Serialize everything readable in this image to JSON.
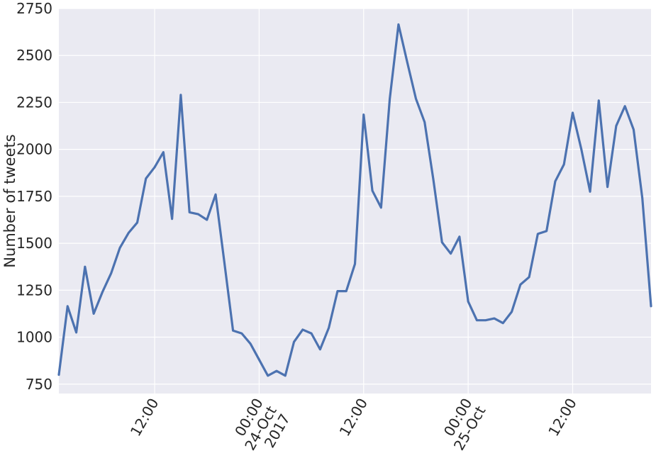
{
  "chart_data": {
    "type": "line",
    "title": "",
    "xlabel": "",
    "ylabel": "Number of tweets",
    "ylim": [
      700,
      2750
    ],
    "xlim": [
      "2017-10-23 01:00",
      "2017-10-25 21:00"
    ],
    "grid": true,
    "y_ticks": [
      750,
      1000,
      1250,
      1500,
      1750,
      2000,
      2250,
      2500,
      2750
    ],
    "x_ticks": [
      {
        "x": "2017-10-23 12:00",
        "label": [
          "12:00"
        ]
      },
      {
        "x": "2017-10-24 00:00",
        "label": [
          "00:00",
          "24-Oct",
          "2017"
        ]
      },
      {
        "x": "2017-10-24 12:00",
        "label": [
          "12:00"
        ]
      },
      {
        "x": "2017-10-25 00:00",
        "label": [
          "00:00",
          "25-Oct"
        ]
      },
      {
        "x": "2017-10-25 12:00",
        "label": [
          "12:00"
        ]
      }
    ],
    "line_color": "#4c72b0",
    "series": [
      {
        "x": [
          "2017-10-23 01:00",
          "2017-10-23 02:00",
          "2017-10-23 03:00",
          "2017-10-23 04:00",
          "2017-10-23 05:00",
          "2017-10-23 06:00",
          "2017-10-23 07:00",
          "2017-10-23 08:00",
          "2017-10-23 09:00",
          "2017-10-23 10:00",
          "2017-10-23 11:00",
          "2017-10-23 12:00",
          "2017-10-23 13:00",
          "2017-10-23 14:00",
          "2017-10-23 15:00",
          "2017-10-23 16:00",
          "2017-10-23 17:00",
          "2017-10-23 18:00",
          "2017-10-23 19:00",
          "2017-10-23 20:00",
          "2017-10-23 21:00",
          "2017-10-23 22:00",
          "2017-10-23 23:00",
          "2017-10-24 00:00",
          "2017-10-24 01:00",
          "2017-10-24 02:00",
          "2017-10-24 03:00",
          "2017-10-24 04:00",
          "2017-10-24 05:00",
          "2017-10-24 06:00",
          "2017-10-24 07:00",
          "2017-10-24 08:00",
          "2017-10-24 09:00",
          "2017-10-24 10:00",
          "2017-10-24 11:00",
          "2017-10-24 12:00",
          "2017-10-24 13:00",
          "2017-10-24 14:00",
          "2017-10-24 15:00",
          "2017-10-24 16:00",
          "2017-10-24 17:00",
          "2017-10-24 18:00",
          "2017-10-24 19:00",
          "2017-10-24 20:00",
          "2017-10-24 21:00",
          "2017-10-24 22:00",
          "2017-10-24 23:00",
          "2017-10-25 00:00",
          "2017-10-25 01:00",
          "2017-10-25 02:00",
          "2017-10-25 03:00",
          "2017-10-25 04:00",
          "2017-10-25 05:00",
          "2017-10-25 06:00",
          "2017-10-25 07:00",
          "2017-10-25 08:00",
          "2017-10-25 09:00",
          "2017-10-25 10:00",
          "2017-10-25 11:00",
          "2017-10-25 12:00",
          "2017-10-25 13:00",
          "2017-10-25 14:00",
          "2017-10-25 15:00",
          "2017-10-25 16:00",
          "2017-10-25 17:00",
          "2017-10-25 18:00",
          "2017-10-25 19:00",
          "2017-10-25 20:00",
          "2017-10-25 21:00"
        ],
        "values": [
          800,
          1165,
          1025,
          1375,
          1125,
          1240,
          1340,
          1475,
          1555,
          1610,
          1845,
          1905,
          1985,
          1630,
          2290,
          1665,
          1655,
          1625,
          1760,
          1400,
          1035,
          1020,
          965,
          880,
          795,
          820,
          795,
          975,
          1040,
          1020,
          935,
          1050,
          1245,
          1245,
          1390,
          2185,
          1780,
          1690,
          2270,
          2665,
          2465,
          2270,
          2145,
          1840,
          1505,
          1445,
          1535,
          1190,
          1090,
          1090,
          1100,
          1075,
          1135,
          1280,
          1320,
          1550,
          1565,
          1830,
          1920,
          2195,
          2000,
          1775,
          2260,
          1800,
          2125,
          2230,
          2105,
          1740,
          1165
        ]
      }
    ]
  }
}
